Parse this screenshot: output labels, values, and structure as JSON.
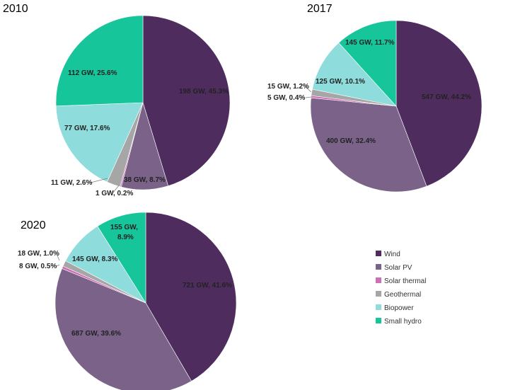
{
  "legend": [
    {
      "name": "Wind",
      "color": "#4e2d5e"
    },
    {
      "name": "Solar PV",
      "color": "#7a6289"
    },
    {
      "name": "Solar thermal",
      "color": "#cd6fb4"
    },
    {
      "name": "Geothermal",
      "color": "#a6a6a6"
    },
    {
      "name": "Biopower",
      "color": "#8fdcdc"
    },
    {
      "name": "Small hydro",
      "color": "#16c59a"
    }
  ],
  "chart_data": [
    {
      "type": "pie",
      "title": "2010",
      "unit": "GW",
      "slices": [
        {
          "category": "Wind",
          "value": 198,
          "percent": 45.3,
          "label": "198 GW, 45.3%"
        },
        {
          "category": "Solar PV",
          "value": 38,
          "percent": 8.7,
          "label": "38 GW, 8.7%"
        },
        {
          "category": "Solar thermal",
          "value": 1,
          "percent": 0.2,
          "label": "1 GW, 0.2%"
        },
        {
          "category": "Geothermal",
          "value": 11,
          "percent": 2.6,
          "label": "11 GW, 2.6%"
        },
        {
          "category": "Biopower",
          "value": 77,
          "percent": 17.6,
          "label": "77 GW, 17.6%"
        },
        {
          "category": "Small hydro",
          "value": 112,
          "percent": 25.6,
          "label": "112 GW, 25.6%"
        }
      ]
    },
    {
      "type": "pie",
      "title": "2017",
      "unit": "GW",
      "slices": [
        {
          "category": "Wind",
          "value": 547,
          "percent": 44.2,
          "label": "547 GW, 44.2%"
        },
        {
          "category": "Solar PV",
          "value": 400,
          "percent": 32.4,
          "label": "400 GW, 32.4%"
        },
        {
          "category": "Solar thermal",
          "value": 5,
          "percent": 0.4,
          "label": "5 GW, 0.4%"
        },
        {
          "category": "Geothermal",
          "value": 15,
          "percent": 1.2,
          "label": "15 GW, 1.2%"
        },
        {
          "category": "Biopower",
          "value": 125,
          "percent": 10.1,
          "label": "125 GW, 10.1%"
        },
        {
          "category": "Small hydro",
          "value": 145,
          "percent": 11.7,
          "label": "145 GW, 11.7%"
        }
      ]
    },
    {
      "type": "pie",
      "title": "2020",
      "unit": "GW",
      "slices": [
        {
          "category": "Wind",
          "value": 721,
          "percent": 41.6,
          "label": "721 GW, 41.6%"
        },
        {
          "category": "Solar PV",
          "value": 687,
          "percent": 39.6,
          "label": "687 GW, 39.6%"
        },
        {
          "category": "Solar thermal",
          "value": 8,
          "percent": 0.5,
          "label": "8 GW, 0.5%"
        },
        {
          "category": "Geothermal",
          "value": 18,
          "percent": 1.0,
          "label": "18 GW, 1.0%"
        },
        {
          "category": "Biopower",
          "value": 145,
          "percent": 8.3,
          "label": "145 GW, 8.3%"
        },
        {
          "category": "Small hydro",
          "value": 155,
          "percent": 8.9,
          "label": "155 GW, 8.9%"
        }
      ]
    }
  ]
}
